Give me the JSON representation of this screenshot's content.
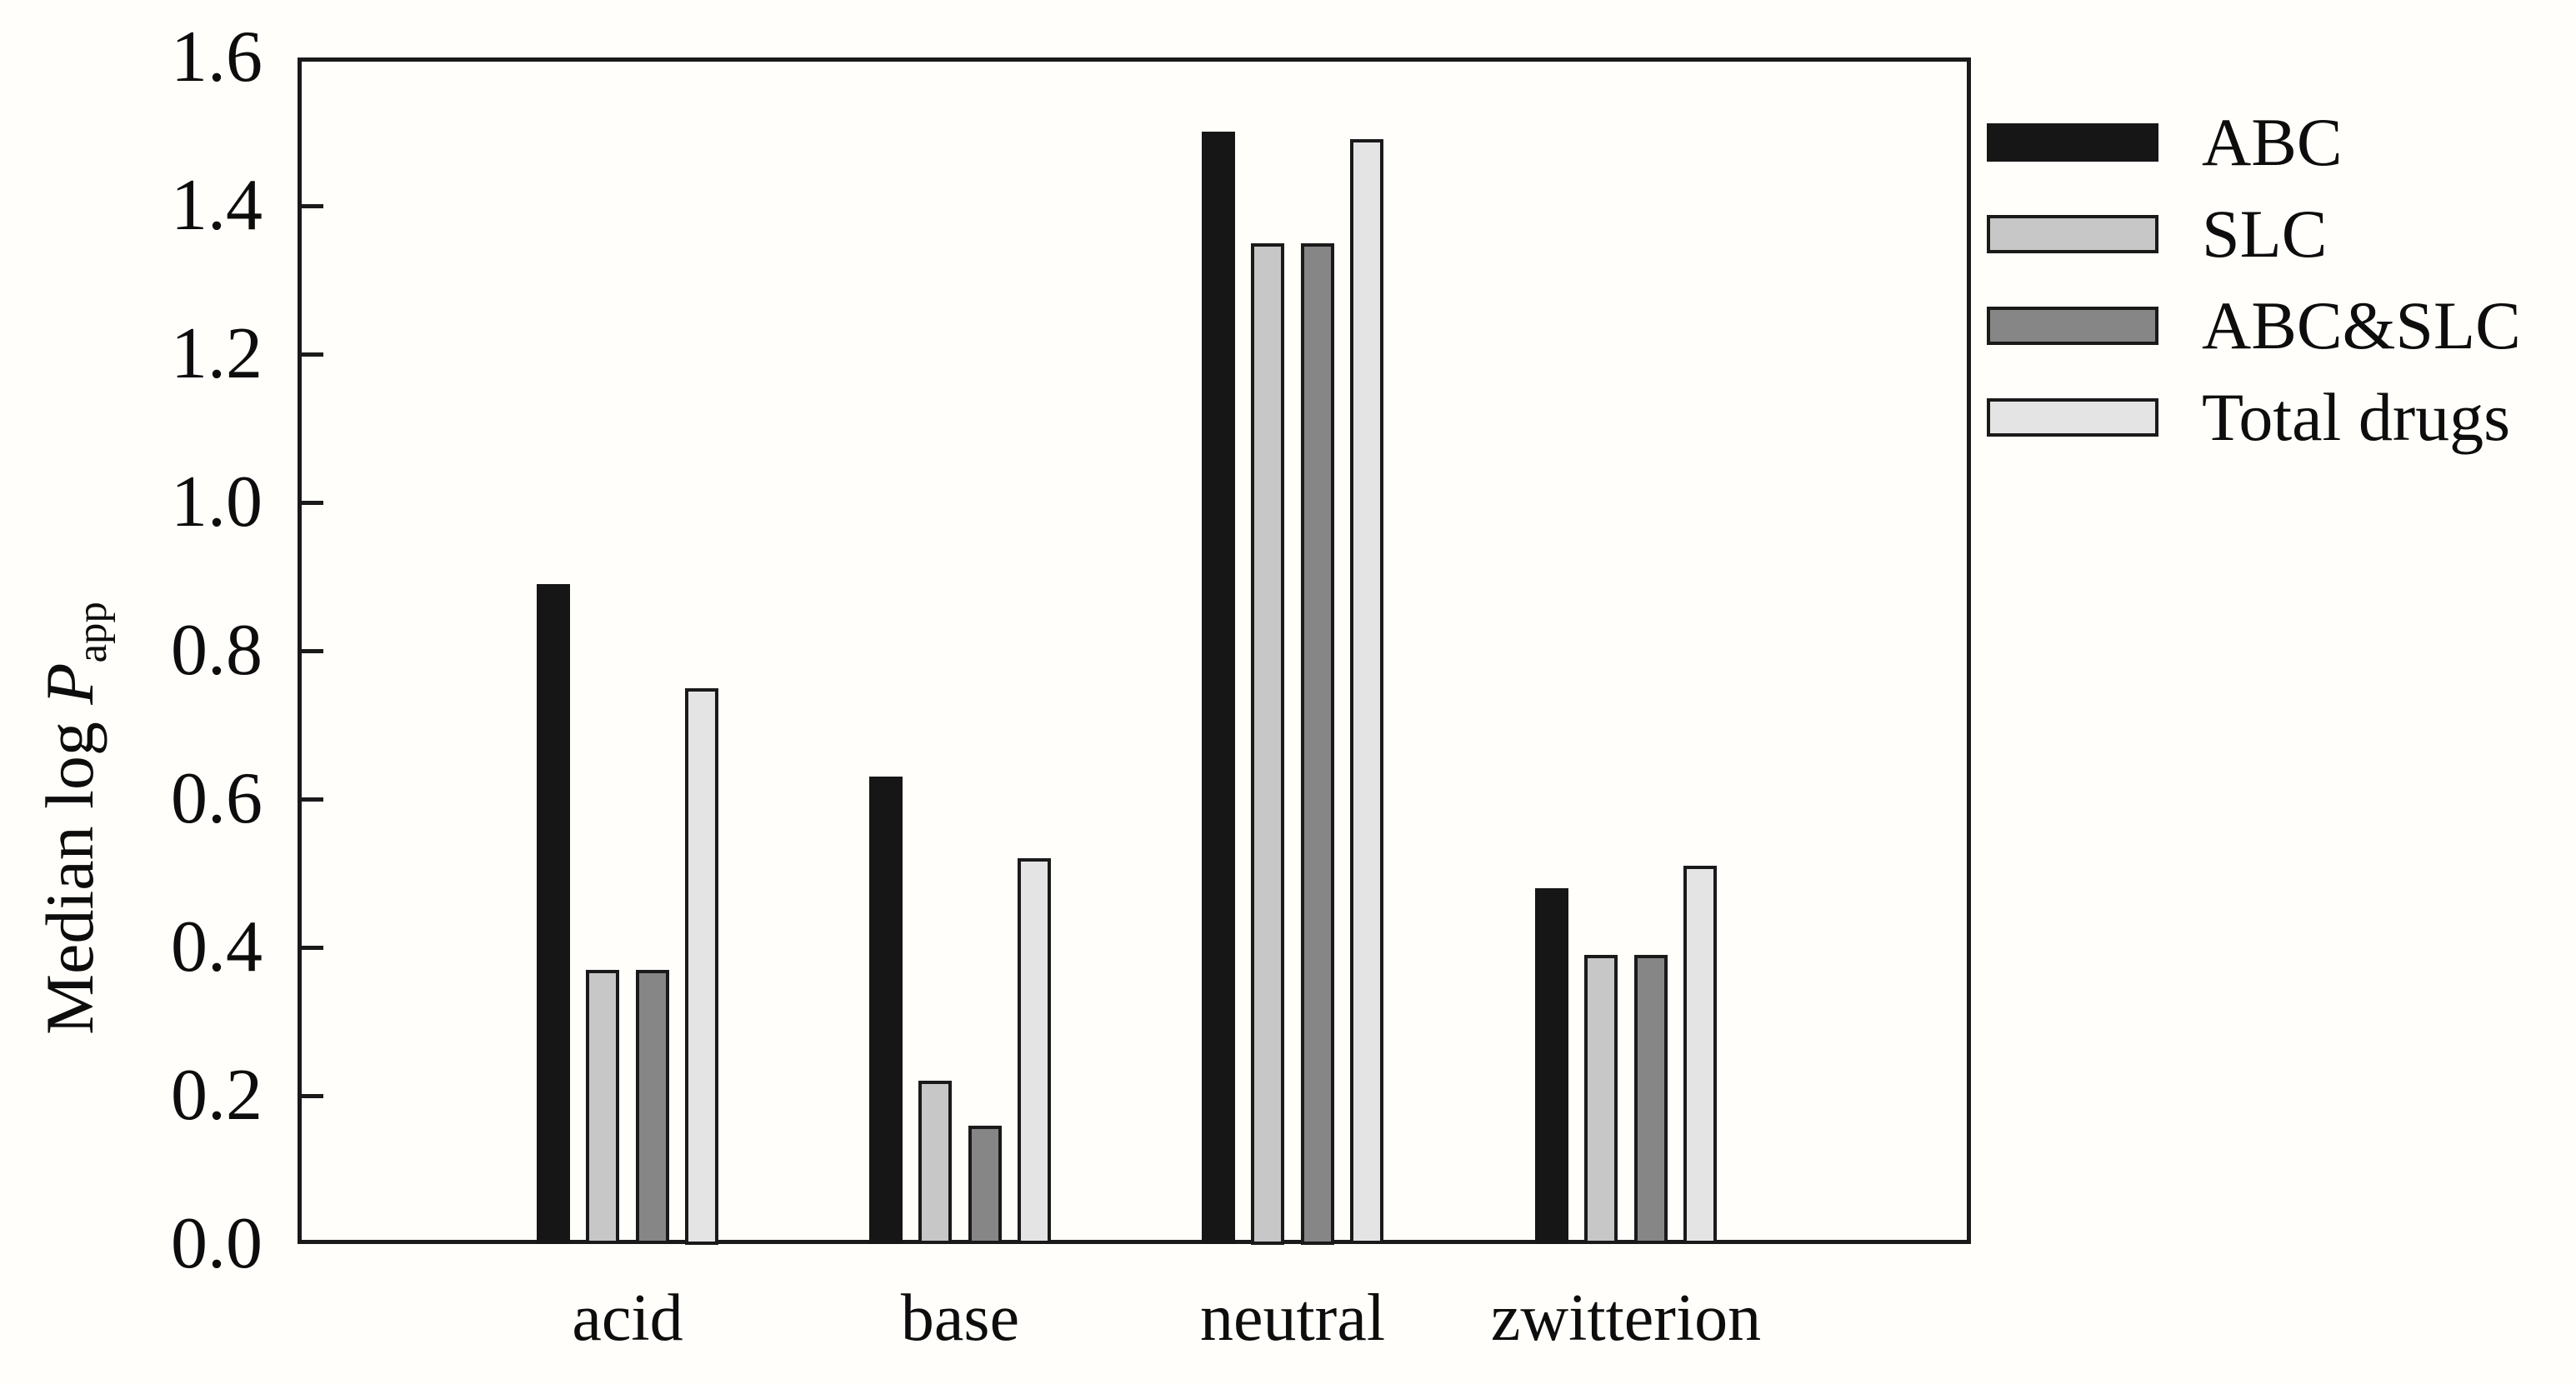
{
  "chart_data": {
    "type": "bar",
    "title": "",
    "categories": [
      "acid",
      "base",
      "neutral",
      "zwitterion"
    ],
    "series": [
      {
        "name": "ABC",
        "fill": "#161616",
        "border": "#161616",
        "values": [
          0.89,
          0.63,
          1.5,
          0.48
        ]
      },
      {
        "name": "SLC",
        "fill": "#C7C7C7",
        "border": "#1A1A1A",
        "values": [
          0.37,
          0.22,
          1.35,
          0.39
        ]
      },
      {
        "name": "ABC&SLC",
        "fill": "#868686",
        "border": "#1A1A1A",
        "values": [
          0.37,
          0.16,
          1.35,
          0.39
        ]
      },
      {
        "name": "Total drugs",
        "fill": "#E4E4E4",
        "border": "#1A1A1A",
        "values": [
          0.75,
          0.52,
          1.49,
          0.51
        ]
      }
    ],
    "xlabel": "",
    "ylabel": "Median log P_app",
    "ylabel_parts": {
      "prefix": "Median log ",
      "symbol": "P",
      "subscript": "app"
    },
    "ylim": [
      0.0,
      1.6
    ],
    "ytick_step": 0.2,
    "ytick_labels": [
      "0.0",
      "0.2",
      "0.4",
      "0.6",
      "0.8",
      "1.0",
      "1.2",
      "1.4",
      "1.6"
    ],
    "grid": false,
    "legend_position": "right-outside",
    "colors": {
      "background": "#FFFEFA",
      "axis": "#1A1A1A",
      "text": "#0d0d0d"
    }
  }
}
